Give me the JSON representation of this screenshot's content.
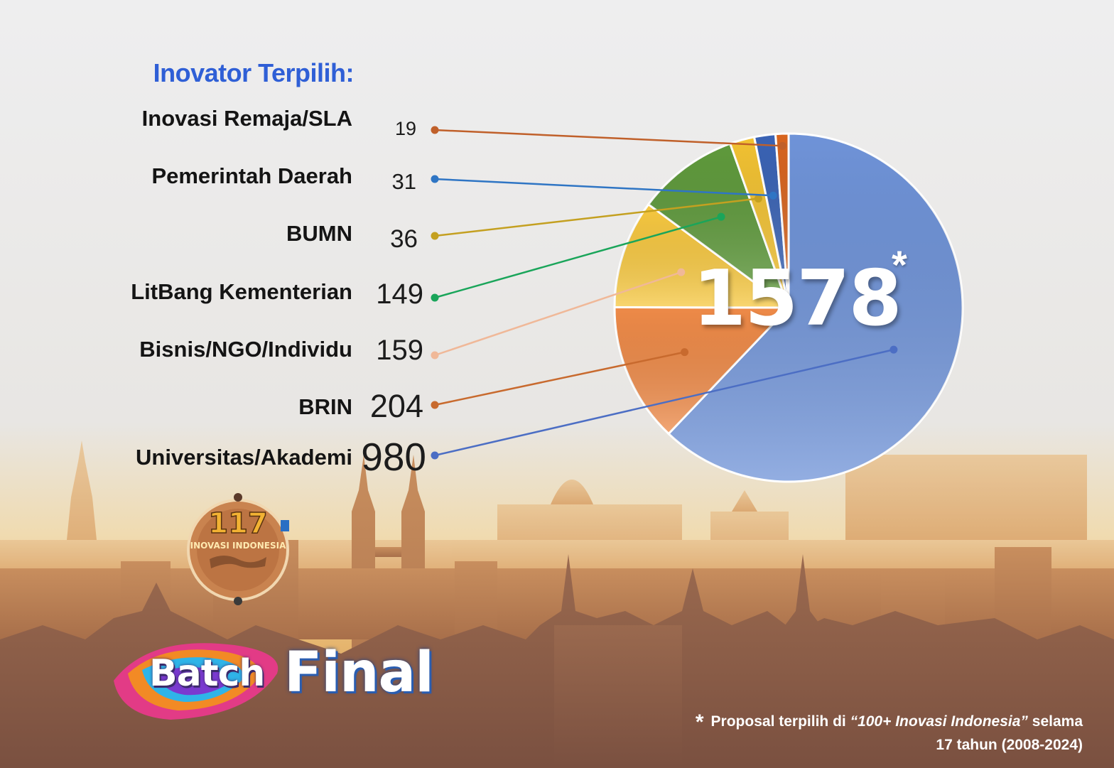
{
  "chart_data": {
    "type": "pie",
    "title": "Inovator Terpilih:",
    "categories": [
      "Inovasi Remaja/SLA",
      "Pemerintah Daerah",
      "BUMN",
      "LitBang Kementerian",
      "Bisnis/NGO/Individu",
      "BRIN",
      "Universitas/Akademi"
    ],
    "values": [
      19,
      31,
      36,
      149,
      159,
      204,
      980
    ],
    "colors": [
      "#d8651f",
      "#3a63b5",
      "#f2c232",
      "#5f9a3c",
      "#f7c840",
      "#ee8a48",
      "#6f93d8"
    ],
    "line_colors": [
      "#c0602a",
      "#2f75c4",
      "#c4a020",
      "#1aa55a",
      "#f0b898",
      "#c86a2e",
      "#4c6ec4"
    ],
    "total": "1578",
    "total_marker": "*",
    "legend": "left"
  },
  "footnote": {
    "marker": "*",
    "text_before": "Proposal terpilih di ",
    "quoted": "“100+ Inovasi Indonesia”",
    "text_after": " selama 17 tahun (2008-2024)"
  },
  "logos": {
    "badge_number": "117",
    "badge_text": "INOVASI INDONESIA",
    "batch_word": "Batch",
    "final_word": "Final"
  }
}
